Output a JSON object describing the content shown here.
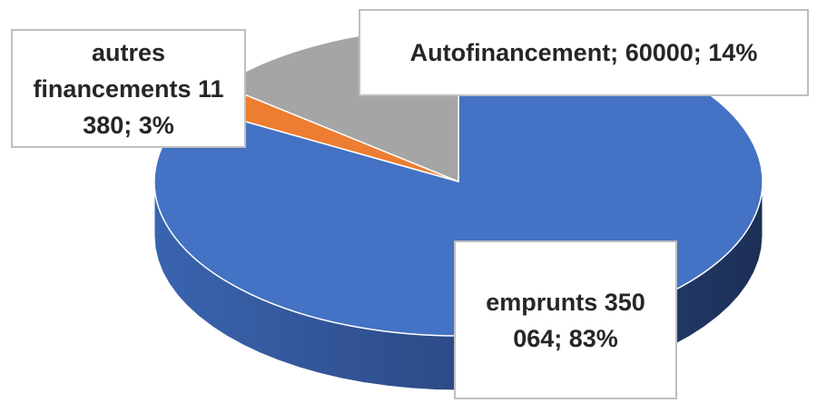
{
  "chart_data": {
    "type": "pie",
    "categories": [
      "emprunts",
      "autres financements",
      "Autofinancement;"
    ],
    "values": [
      350064,
      11380,
      60000
    ],
    "value_labels": [
      "350 064;",
      "11 380;",
      "60000;"
    ],
    "percents": [
      83,
      3,
      14
    ],
    "percent_labels": [
      "83%",
      "3%",
      "14%"
    ],
    "colors": [
      "#4472c4",
      "#ed7d31",
      "#a5a5a5"
    ],
    "start_angle": 0,
    "direction": "clockwise",
    "three_d": true
  }
}
